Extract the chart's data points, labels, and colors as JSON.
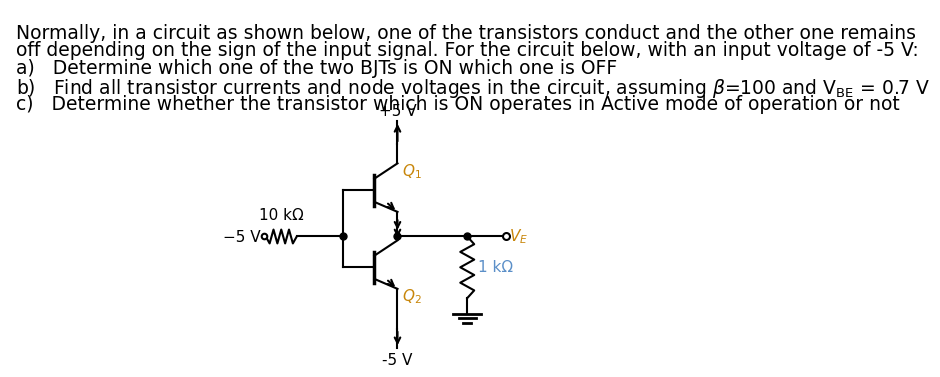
{
  "bg_color": "#ffffff",
  "text_color": "#000000",
  "circuit_color": "#000000",
  "label_color_q": "#c8860a",
  "label_color_r": "#5b8fc8",
  "line_text": [
    "Normally, in a circuit as shown below, one of the transistors conduct and the other one remains",
    "off depending on the sign of the input signal. For the circuit below, with an input voltage of -5 V:"
  ],
  "items": [
    "a)   Determine which one of the two BJTs is ON which one is OFF",
    "b)   Find all transistor currents and node voltages in the circuit, assuming $\\beta$=100 and V$_{BE}$ = 0.7 V",
    "c)   Determine whether the transistor which is ON operates in Active mode of operation or not"
  ]
}
